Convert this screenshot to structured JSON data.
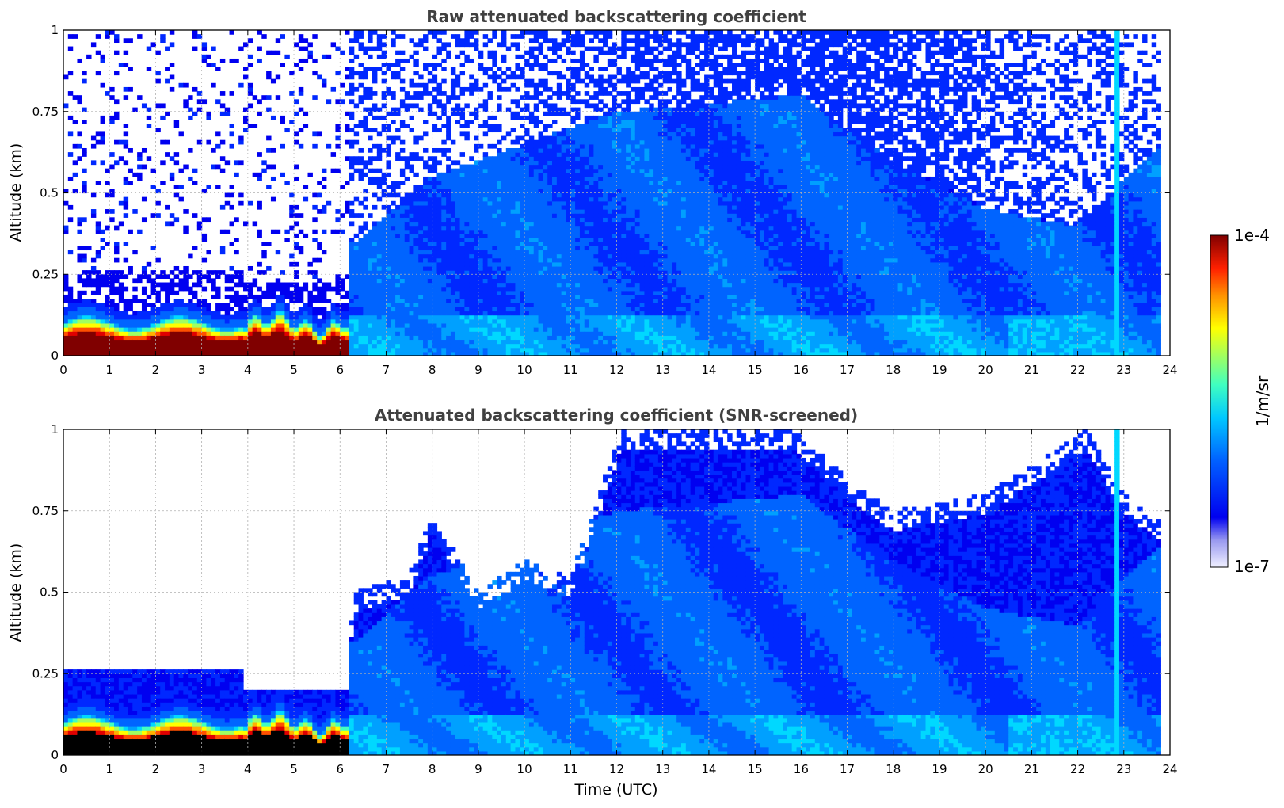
{
  "colormap": [
    "#ffffff",
    "#e4e4f8",
    "#c8c8f2",
    "#0000f0",
    "#0028ff",
    "#0064ff",
    "#00a0ff",
    "#00d8ff",
    "#40ffc0",
    "#a0ff60",
    "#ffff00",
    "#ffb000",
    "#ff5000",
    "#e00000",
    "#800000"
  ],
  "colorbar": {
    "max_label": "1e-4",
    "min_label": "1e-7",
    "unit_label": "1/m/sr"
  },
  "chart_data": [
    {
      "type": "heatmap",
      "title": "Raw attenuated backscattering coefficient",
      "xlabel": "",
      "ylabel": "Altitude (km)",
      "xlim": [
        0,
        24
      ],
      "ylim": [
        0,
        1
      ],
      "x_ticks": [
        "0",
        "1",
        "2",
        "3",
        "4",
        "5",
        "6",
        "7",
        "8",
        "9",
        "10",
        "11",
        "12",
        "13",
        "14",
        "15",
        "16",
        "17",
        "18",
        "19",
        "20",
        "21",
        "22",
        "23",
        "24"
      ],
      "y_ticks": [
        "0",
        "0.25",
        "0.5",
        "0.75",
        "1"
      ],
      "grid": true,
      "colorscale": "log",
      "data_end_hour": 23.8,
      "description_profile": {
        "surface_aerosol_layer": {
          "time_range": [
            0,
            6.2
          ],
          "top_km": [
            0.12,
            0.22
          ]
        },
        "well_mixed_layer_top_km": {
          "times": [
            6.3,
            8,
            12,
            16,
            18,
            20,
            22,
            23.8
          ],
          "tops": [
            0.35,
            0.55,
            0.75,
            0.8,
            0.6,
            0.45,
            0.4,
            0.65
          ]
        },
        "noise_spike_hour": 22.8
      }
    },
    {
      "type": "heatmap",
      "title": "Attenuated backscattering coefficient (SNR-screened)",
      "xlabel": "Time (UTC)",
      "ylabel": "Altitude (km)",
      "xlim": [
        0,
        24
      ],
      "ylim": [
        0,
        1
      ],
      "x_ticks": [
        "0",
        "1",
        "2",
        "3",
        "4",
        "5",
        "6",
        "7",
        "8",
        "9",
        "10",
        "11",
        "12",
        "13",
        "14",
        "15",
        "16",
        "17",
        "18",
        "19",
        "20",
        "21",
        "22",
        "23",
        "24"
      ],
      "y_ticks": [
        "0",
        "0.25",
        "0.5",
        "0.75",
        "1"
      ],
      "grid": true,
      "colorscale": "log",
      "data_end_hour": 23.8,
      "screened_top_km": {
        "times": [
          0,
          3.8,
          4.0,
          6.1,
          6.3,
          7.5,
          8.0,
          9.0,
          10.0,
          11.0,
          12.1,
          15.8,
          17.0,
          18.0,
          20.0,
          22.2,
          23.0,
          23.8
        ],
        "tops": [
          0.26,
          0.26,
          0.2,
          0.2,
          0.5,
          0.55,
          0.75,
          0.5,
          0.6,
          0.55,
          1.0,
          1.0,
          0.85,
          0.75,
          0.8,
          1.0,
          0.8,
          0.72
        ]
      }
    }
  ]
}
